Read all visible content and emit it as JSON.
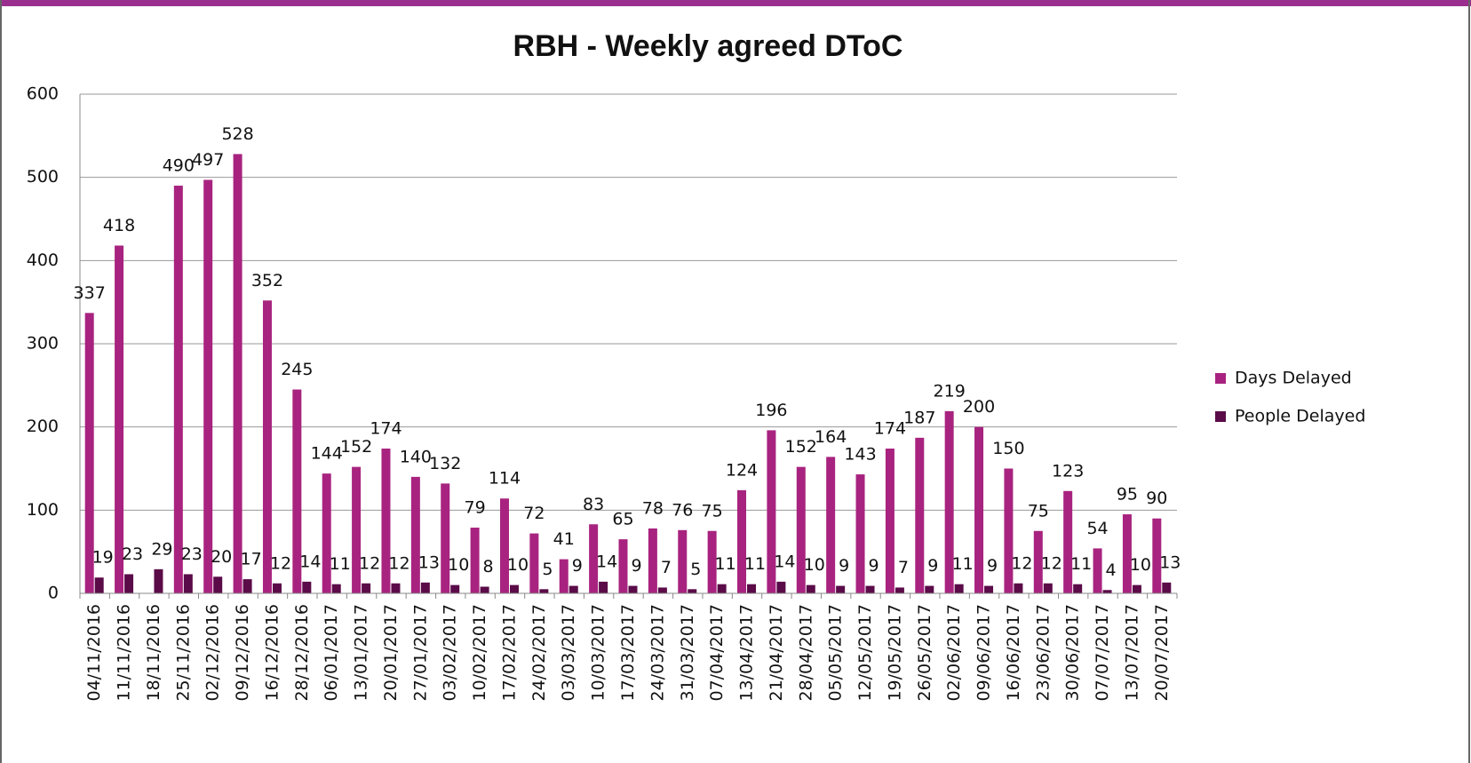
{
  "chart_data": {
    "type": "bar",
    "title": "RBH - Weekly agreed DToC",
    "categories": [
      "04/11/2016",
      "11/11/2016",
      "18/11/2016",
      "25/11/2016",
      "02/12/2016",
      "09/12/2016",
      "16/12/2016",
      "28/12/2016",
      "06/01/2017",
      "13/01/2017",
      "20/01/2017",
      "27/01/2017",
      "03/02/2017",
      "10/02/2017",
      "17/02/2017",
      "24/02/2017",
      "03/03/2017",
      "10/03/2017",
      "17/03/2017",
      "24/03/2017",
      "31/03/2017",
      "07/04/2017",
      "13/04/2017",
      "21/04/2017",
      "28/04/2017",
      "05/05/2017",
      "12/05/2017",
      "19/05/2017",
      "26/05/2017",
      "02/06/2017",
      "09/06/2017",
      "16/06/2017",
      "23/06/2017",
      "30/06/2017",
      "07/07/2017",
      "13/07/2017",
      "20/07/2017"
    ],
    "series": [
      {
        "name": "Days Delayed",
        "color": "#a8237f",
        "values": [
          337,
          418,
          null,
          490,
          497,
          528,
          352,
          245,
          144,
          152,
          174,
          140,
          132,
          79,
          114,
          72,
          41,
          83,
          65,
          78,
          76,
          75,
          124,
          196,
          152,
          164,
          143,
          174,
          187,
          219,
          200,
          150,
          75,
          123,
          54,
          95,
          90
        ]
      },
      {
        "name": "People Delayed",
        "color": "#5a0b48",
        "values": [
          19,
          23,
          29,
          23,
          20,
          17,
          12,
          14,
          11,
          12,
          12,
          13,
          10,
          8,
          10,
          5,
          9,
          14,
          9,
          7,
          5,
          11,
          11,
          14,
          10,
          9,
          9,
          7,
          9,
          11,
          9,
          12,
          12,
          11,
          4,
          10,
          13
        ]
      }
    ],
    "ylim": [
      0,
      600
    ],
    "yticks": [
      0,
      100,
      200,
      300,
      400,
      500,
      600
    ],
    "grid": true,
    "legend": "right"
  }
}
